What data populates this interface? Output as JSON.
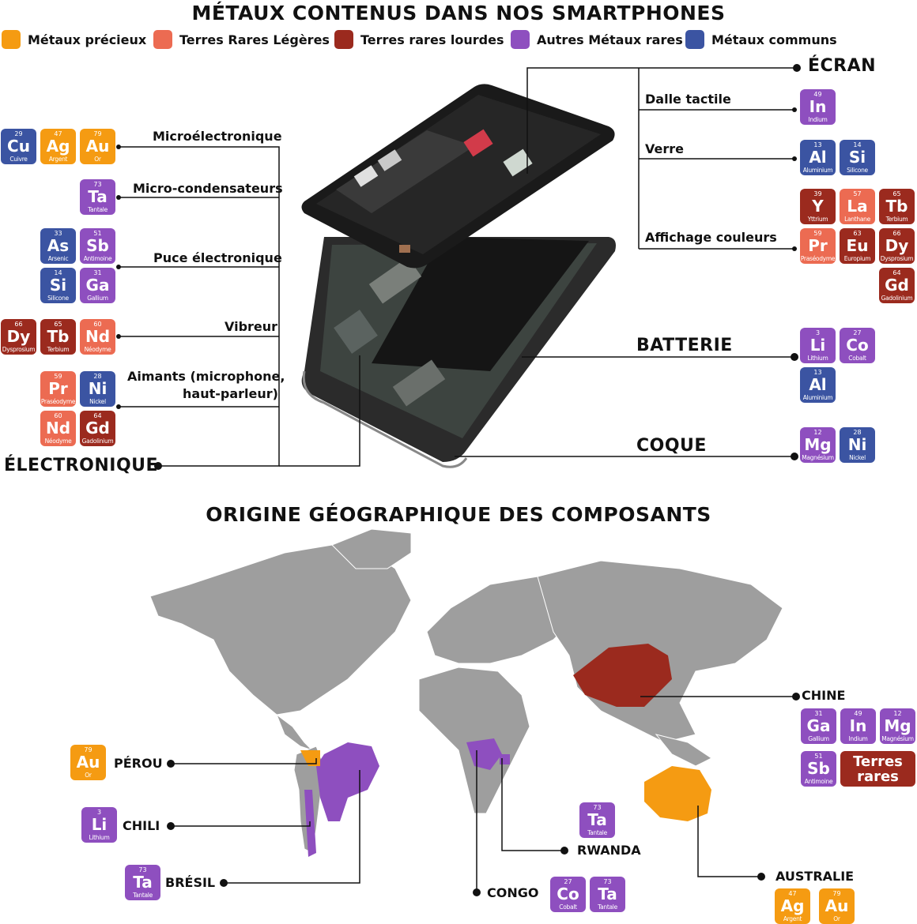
{
  "title_top": "MÉTAUX CONTENUS DANS NOS SMARTPHONES",
  "title_bottom": "ORIGINE GÉOGRAPHIQUE DES COMPOSANTS",
  "colors": {
    "precieux": "#f59b12",
    "legeres": "#ec6b52",
    "lourdes": "#9b2a1e",
    "autres": "#8e4fbf",
    "communs": "#3b54a2",
    "map_land": "#9e9e9e"
  },
  "legend": [
    {
      "label": "Métaux précieux"
    },
    {
      "label": "Terres Rares Légères"
    },
    {
      "label": "Terres rares lourdes"
    },
    {
      "label": "Autres Métaux rares"
    },
    {
      "label": "Métaux communs"
    }
  ],
  "sections": {
    "ecran": "ÉCRAN",
    "batterie": "BATTERIE",
    "coque": "COQUE",
    "electronique": "ÉLECTRONIQUE"
  },
  "labels": {
    "microelectronique": "Microélectronique",
    "micro_condensateurs": "Micro-condensateurs",
    "puce": "Puce électronique",
    "vibreur": "Vibreur",
    "aimants_1": "Aimants (microphone,",
    "aimants_2": "haut-parleur)",
    "dalle": "Dalle tactile",
    "verre": "Verre",
    "affichage": "Affichage couleurs"
  },
  "elements": {
    "cu": {
      "num": "29",
      "sym": "Cu",
      "name": "Cuivre"
    },
    "ag": {
      "num": "47",
      "sym": "Ag",
      "name": "Argent"
    },
    "au": {
      "num": "79",
      "sym": "Au",
      "name": "Or"
    },
    "ta": {
      "num": "73",
      "sym": "Ta",
      "name": "Tantale"
    },
    "as": {
      "num": "33",
      "sym": "As",
      "name": "Arsenic"
    },
    "sb": {
      "num": "51",
      "sym": "Sb",
      "name": "Antimoine"
    },
    "si": {
      "num": "14",
      "sym": "Si",
      "name": "Silicone"
    },
    "ga": {
      "num": "31",
      "sym": "Ga",
      "name": "Gallium"
    },
    "dy": {
      "num": "66",
      "sym": "Dy",
      "name": "Dysprosium"
    },
    "tb": {
      "num": "65",
      "sym": "Tb",
      "name": "Terbium"
    },
    "nd": {
      "num": "60",
      "sym": "Nd",
      "name": "Néodyme"
    },
    "pr": {
      "num": "59",
      "sym": "Pr",
      "name": "Praséodyme"
    },
    "ni": {
      "num": "28",
      "sym": "Ni",
      "name": "Nickel"
    },
    "gd": {
      "num": "64",
      "sym": "Gd",
      "name": "Gadolinium"
    },
    "in": {
      "num": "49",
      "sym": "In",
      "name": "Indium"
    },
    "al": {
      "num": "13",
      "sym": "Al",
      "name": "Aluminium"
    },
    "y": {
      "num": "39",
      "sym": "Y",
      "name": "Yttrium"
    },
    "la": {
      "num": "57",
      "sym": "La",
      "name": "Lanthane"
    },
    "eu": {
      "num": "63",
      "sym": "Eu",
      "name": "Europium"
    },
    "li": {
      "num": "3",
      "sym": "Li",
      "name": "Lithium"
    },
    "co": {
      "num": "27",
      "sym": "Co",
      "name": "Cobalt"
    },
    "mg": {
      "num": "12",
      "sym": "Mg",
      "name": "Magnésium"
    }
  },
  "countries": {
    "chine": "CHINE",
    "perou": "PÉROU",
    "chili": "CHILI",
    "bresil": "BRÉSIL",
    "rwanda": "RWANDA",
    "congo": "CONGO",
    "australie": "AUSTRALIE"
  },
  "terres_rares": "Terres rares"
}
